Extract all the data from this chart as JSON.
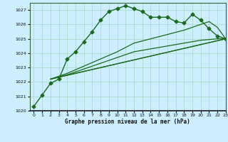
{
  "xlabel": "Graphe pression niveau de la mer (hPa)",
  "background_color": "#cceeff",
  "grid_color": "#aaddcc",
  "line_color": "#1a6b1a",
  "ylim": [
    1020,
    1027.5
  ],
  "xlim": [
    -0.5,
    23
  ],
  "yticks": [
    1020,
    1021,
    1022,
    1023,
    1024,
    1025,
    1026,
    1027
  ],
  "xticks": [
    0,
    1,
    2,
    3,
    4,
    5,
    6,
    7,
    8,
    9,
    10,
    11,
    12,
    13,
    14,
    15,
    16,
    17,
    18,
    19,
    20,
    21,
    22,
    23
  ],
  "series": [
    {
      "x": [
        0,
        1,
        2,
        3,
        4,
        5,
        6,
        7,
        8,
        9,
        10,
        11,
        12,
        13,
        14,
        15,
        16,
        17,
        18,
        19,
        20,
        21,
        22,
        23
      ],
      "y": [
        1020.3,
        1021.1,
        1021.9,
        1022.2,
        1023.6,
        1024.1,
        1024.8,
        1025.5,
        1026.3,
        1026.9,
        1027.1,
        1027.3,
        1027.1,
        1026.9,
        1026.5,
        1026.5,
        1026.5,
        1026.2,
        1026.1,
        1026.7,
        1026.3,
        1025.7,
        1025.2,
        1025.0
      ],
      "marker": "D",
      "markersize": 2.5,
      "linewidth": 1.0,
      "zorder": 3
    },
    {
      "x": [
        2,
        23
      ],
      "y": [
        1022.2,
        1025.0
      ],
      "marker": null,
      "markersize": 0,
      "linewidth": 0.9,
      "zorder": 2
    },
    {
      "x": [
        2,
        23
      ],
      "y": [
        1022.2,
        1025.0
      ],
      "marker": null,
      "markersize": 0,
      "linewidth": 0.9,
      "zorder": 2
    },
    {
      "x": [
        2,
        4,
        6,
        8,
        10,
        12,
        14,
        16,
        18,
        20,
        22,
        23
      ],
      "y": [
        1022.2,
        1022.5,
        1022.9,
        1023.3,
        1023.7,
        1024.1,
        1024.3,
        1024.5,
        1024.7,
        1024.9,
        1025.0,
        1025.0
      ],
      "marker": null,
      "markersize": 0,
      "linewidth": 0.9,
      "zorder": 2
    },
    {
      "x": [
        2,
        4,
        6,
        8,
        10,
        12,
        14,
        16,
        18,
        20,
        21,
        22,
        23
      ],
      "y": [
        1022.2,
        1022.6,
        1023.1,
        1023.6,
        1024.1,
        1024.7,
        1025.0,
        1025.3,
        1025.6,
        1026.0,
        1026.2,
        1025.8,
        1025.0
      ],
      "marker": null,
      "markersize": 0,
      "linewidth": 0.9,
      "zorder": 2
    }
  ]
}
